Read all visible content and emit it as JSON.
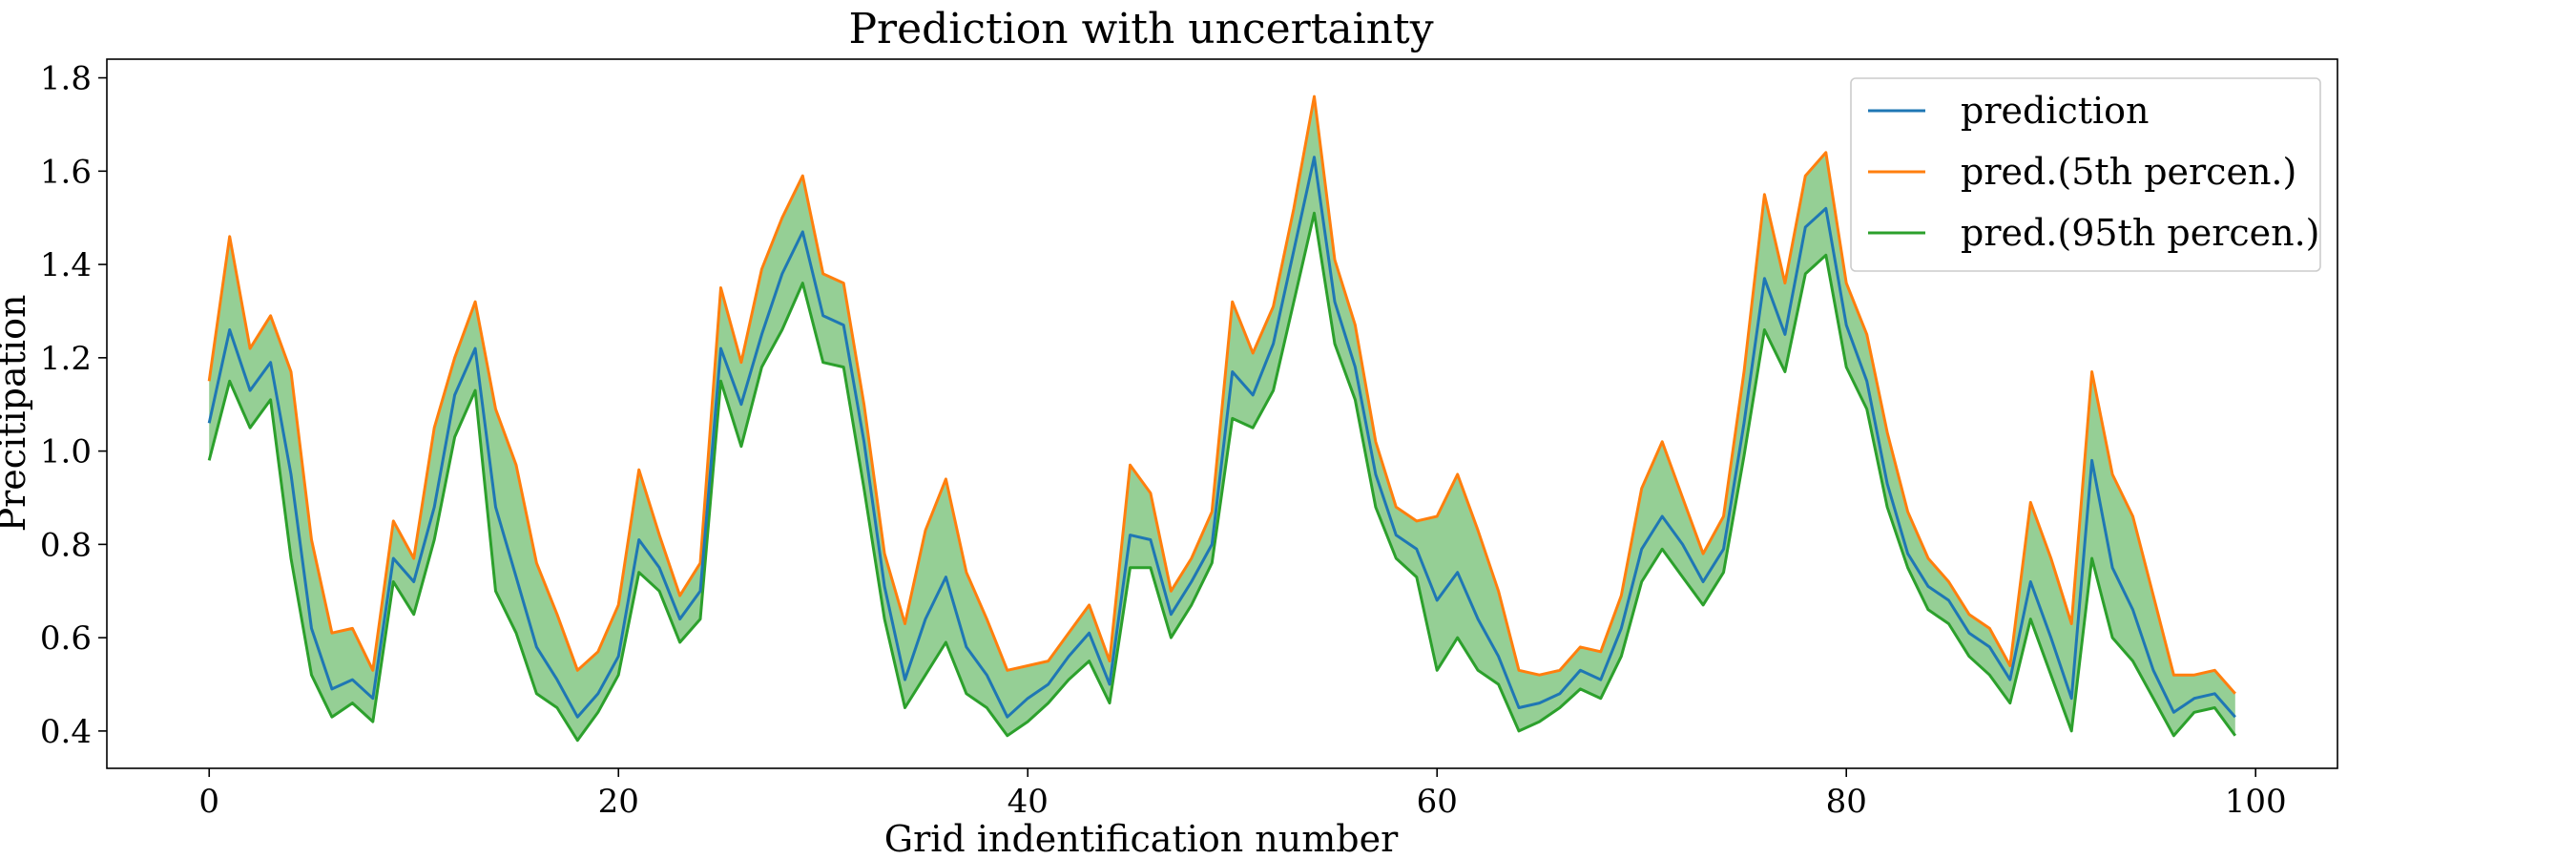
{
  "chart_data": {
    "type": "line",
    "title": "Prediction with uncertainty",
    "xlabel": "Grid indentification number",
    "ylabel": "Precitipation",
    "xlim": [
      -5,
      104
    ],
    "ylim": [
      0.32,
      1.84
    ],
    "xticks": [
      0,
      20,
      40,
      60,
      80,
      100
    ],
    "yticks": [
      0.4,
      0.6,
      0.8,
      1.0,
      1.2,
      1.4,
      1.6,
      1.8
    ],
    "ytick_labels": [
      "0.4",
      "0.6",
      "0.8",
      "1.0",
      "1.2",
      "1.4",
      "1.6",
      "1.8"
    ],
    "grid": false,
    "legend_position": "top-right",
    "fill_between": {
      "series": [
        "pred.(5th percen.)",
        "pred.(95th percen.)"
      ],
      "color": "#2ca02c",
      "opacity": 0.5
    },
    "x": [
      0,
      1,
      2,
      3,
      4,
      5,
      6,
      7,
      8,
      9,
      10,
      11,
      12,
      13,
      14,
      15,
      16,
      17,
      18,
      19,
      20,
      21,
      22,
      23,
      24,
      25,
      26,
      27,
      28,
      29,
      30,
      31,
      32,
      33,
      34,
      35,
      36,
      37,
      38,
      39,
      40,
      41,
      42,
      43,
      44,
      45,
      46,
      47,
      48,
      49,
      50,
      51,
      52,
      53,
      54,
      55,
      56,
      57,
      58,
      59,
      60,
      61,
      62,
      63,
      64,
      65,
      66,
      67,
      68,
      69,
      70,
      71,
      72,
      73,
      74,
      75,
      76,
      77,
      78,
      79,
      80,
      81,
      82,
      83,
      84,
      85,
      86,
      87,
      88,
      89,
      90,
      91,
      92,
      93,
      94,
      95,
      96,
      97,
      98,
      99
    ],
    "series": [
      {
        "name": "prediction",
        "color": "#1f77b4",
        "values": [
          1.06,
          1.26,
          1.13,
          1.19,
          0.95,
          0.62,
          0.49,
          0.51,
          0.47,
          0.77,
          0.72,
          0.88,
          1.12,
          1.22,
          0.88,
          0.73,
          0.58,
          0.51,
          0.43,
          0.48,
          0.56,
          0.81,
          0.75,
          0.64,
          0.7,
          1.22,
          1.1,
          1.25,
          1.38,
          1.47,
          1.29,
          1.27,
          1.02,
          0.71,
          0.51,
          0.64,
          0.73,
          0.58,
          0.52,
          0.43,
          0.47,
          0.5,
          0.56,
          0.61,
          0.5,
          0.82,
          0.81,
          0.65,
          0.72,
          0.8,
          1.17,
          1.12,
          1.23,
          1.43,
          1.63,
          1.32,
          1.18,
          0.95,
          0.82,
          0.79,
          0.68,
          0.74,
          0.64,
          0.56,
          0.45,
          0.46,
          0.48,
          0.53,
          0.51,
          0.62,
          0.79,
          0.86,
          0.8,
          0.72,
          0.79,
          1.06,
          1.37,
          1.25,
          1.48,
          1.52,
          1.27,
          1.15,
          0.93,
          0.78,
          0.71,
          0.68,
          0.61,
          0.58,
          0.51,
          0.72,
          0.6,
          0.47,
          0.98,
          0.75,
          0.66,
          0.53,
          0.44,
          0.47,
          0.48,
          0.43
        ]
      },
      {
        "name": "pred.(5th percen.)",
        "color": "#ff7f0e",
        "values": [
          1.15,
          1.46,
          1.22,
          1.29,
          1.17,
          0.81,
          0.61,
          0.62,
          0.53,
          0.85,
          0.77,
          1.05,
          1.2,
          1.32,
          1.09,
          0.97,
          0.76,
          0.65,
          0.53,
          0.57,
          0.67,
          0.96,
          0.82,
          0.69,
          0.76,
          1.35,
          1.19,
          1.39,
          1.5,
          1.59,
          1.38,
          1.36,
          1.1,
          0.78,
          0.63,
          0.83,
          0.94,
          0.74,
          0.64,
          0.53,
          0.54,
          0.55,
          0.61,
          0.67,
          0.55,
          0.97,
          0.91,
          0.7,
          0.77,
          0.87,
          1.32,
          1.21,
          1.31,
          1.52,
          1.76,
          1.41,
          1.27,
          1.02,
          0.88,
          0.85,
          0.86,
          0.95,
          0.83,
          0.7,
          0.53,
          0.52,
          0.53,
          0.58,
          0.57,
          0.69,
          0.92,
          1.02,
          0.9,
          0.78,
          0.86,
          1.17,
          1.55,
          1.36,
          1.59,
          1.64,
          1.36,
          1.25,
          1.04,
          0.87,
          0.77,
          0.72,
          0.65,
          0.62,
          0.54,
          0.89,
          0.77,
          0.63,
          1.17,
          0.95,
          0.86,
          0.69,
          0.52,
          0.52,
          0.53,
          0.48
        ]
      },
      {
        "name": "pred.(95th percen.)",
        "color": "#2ca02c",
        "values": [
          0.98,
          1.15,
          1.05,
          1.11,
          0.77,
          0.52,
          0.43,
          0.46,
          0.42,
          0.72,
          0.65,
          0.81,
          1.03,
          1.13,
          0.7,
          0.61,
          0.48,
          0.45,
          0.38,
          0.44,
          0.52,
          0.74,
          0.7,
          0.59,
          0.64,
          1.15,
          1.01,
          1.18,
          1.26,
          1.36,
          1.19,
          1.18,
          0.92,
          0.64,
          0.45,
          0.52,
          0.59,
          0.48,
          0.45,
          0.39,
          0.42,
          0.46,
          0.51,
          0.55,
          0.46,
          0.75,
          0.75,
          0.6,
          0.67,
          0.76,
          1.07,
          1.05,
          1.13,
          1.32,
          1.51,
          1.23,
          1.11,
          0.88,
          0.77,
          0.73,
          0.53,
          0.6,
          0.53,
          0.5,
          0.4,
          0.42,
          0.45,
          0.49,
          0.47,
          0.56,
          0.72,
          0.79,
          0.73,
          0.67,
          0.74,
          0.99,
          1.26,
          1.17,
          1.38,
          1.42,
          1.18,
          1.09,
          0.88,
          0.75,
          0.66,
          0.63,
          0.56,
          0.52,
          0.46,
          0.64,
          0.52,
          0.4,
          0.77,
          0.6,
          0.55,
          0.47,
          0.39,
          0.44,
          0.45,
          0.39
        ]
      }
    ]
  }
}
